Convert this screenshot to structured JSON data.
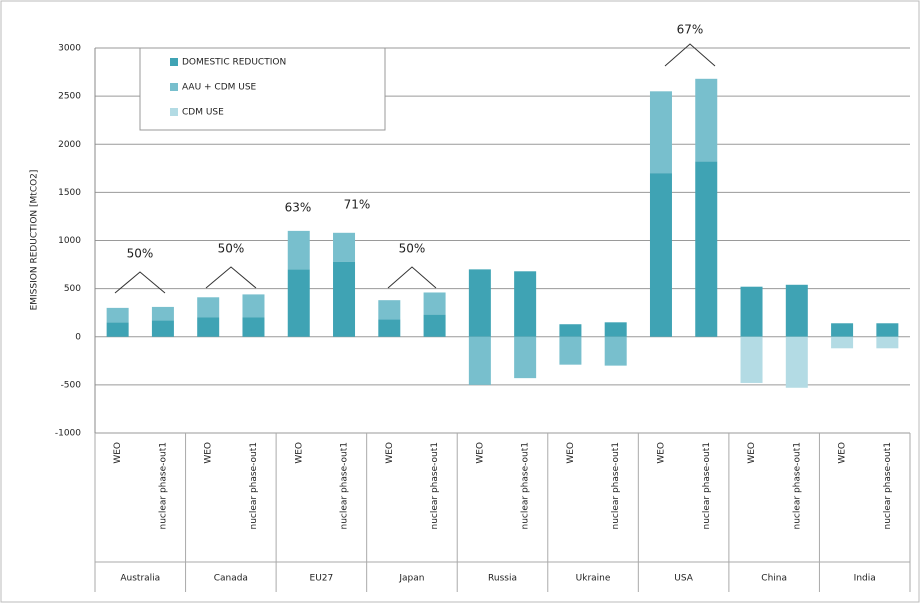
{
  "chart_data": {
    "type": "stacked_bar",
    "ylabel": "EMISSION REDUCTION [MtCO2]",
    "ylim": [
      -1000,
      3000
    ],
    "yticks": [
      -1000,
      -500,
      0,
      500,
      1000,
      1500,
      2000,
      2500,
      3000
    ],
    "grid": true,
    "legend": "top-left",
    "groups": [
      "Australia",
      "Canada",
      "EU27",
      "Japan",
      "Russia",
      "Ukraine",
      "USA",
      "China",
      "India"
    ],
    "categories": [
      "WEO",
      "nuclear phase-out1",
      "WEO",
      "nuclear phase-out1",
      "WEO",
      "nuclear phase-out1",
      "WEO",
      "nuclear phase-out1",
      "WEO",
      "nuclear phase-out1",
      "WEO",
      "nuclear phase-out1",
      "WEO",
      "nuclear phase-out1",
      "WEO",
      "nuclear phase-out1",
      "WEO",
      "nuclear phase-out1"
    ],
    "series": [
      {
        "name": "DOMESTIC REDUCTION",
        "color": "#3fa3b4",
        "values": [
          150,
          170,
          200,
          200,
          700,
          780,
          180,
          230,
          700,
          680,
          130,
          150,
          1700,
          1820,
          520,
          540,
          140,
          140
        ]
      },
      {
        "name": "AAU + CDM USE",
        "color": "#78bfcd",
        "values": [
          150,
          140,
          210,
          240,
          400,
          300,
          200,
          230,
          -500,
          -430,
          -290,
          -300,
          850,
          860,
          null,
          null,
          null,
          null
        ]
      },
      {
        "name": "CDM USE",
        "color": "#b3dbe4",
        "values": [
          null,
          null,
          null,
          null,
          null,
          null,
          null,
          null,
          null,
          null,
          null,
          null,
          null,
          null,
          -480,
          -530,
          -120,
          -120
        ]
      }
    ],
    "annotations": [
      "50%",
      "50%",
      "63%",
      "71%",
      "50%",
      "67%"
    ]
  }
}
